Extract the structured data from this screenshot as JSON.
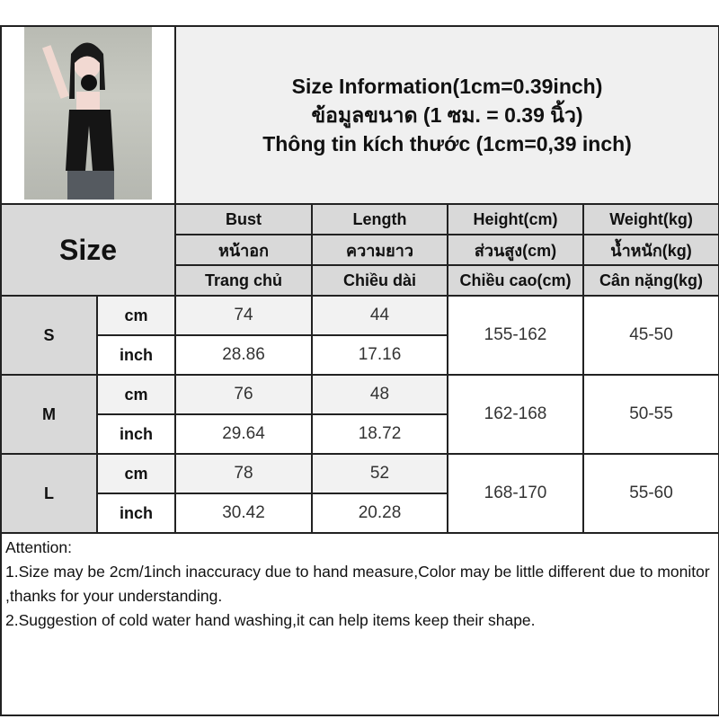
{
  "title": {
    "line_en": "Size Information(1cm=0.39inch)",
    "line_th": "ข้อมูลขนาด (1 ซม. = 0.39 นิ้ว)",
    "line_vi": "Thông tin kích thước (1cm=0,39 inch)"
  },
  "table": {
    "size_label": "Size",
    "columns": [
      {
        "en": "Bust",
        "th": "หน้าอก",
        "vi": "Trang chủ"
      },
      {
        "en": "Length",
        "th": "ความยาว",
        "vi": "Chiều dài"
      },
      {
        "en": "Height(cm)",
        "th": "ส่วนสูง(cm)",
        "vi": "Chiều cao(cm)"
      },
      {
        "en": "Weight(kg)",
        "th": "น้ำหนัก(kg)",
        "vi": "Cân nặng(kg)"
      }
    ],
    "unit_cm": "cm",
    "unit_inch": "inch",
    "rows": [
      {
        "size": "S",
        "bust_cm": "74",
        "length_cm": "44",
        "bust_inch": "28.86",
        "length_inch": "17.16",
        "height": "155-162",
        "weight": "45-50"
      },
      {
        "size": "M",
        "bust_cm": "76",
        "length_cm": "48",
        "bust_inch": "29.64",
        "length_inch": "18.72",
        "height": "162-168",
        "weight": "50-55"
      },
      {
        "size": "L",
        "bust_cm": "78",
        "length_cm": "52",
        "bust_inch": "30.42",
        "length_inch": "20.28",
        "height": "168-170",
        "weight": "55-60"
      }
    ]
  },
  "attention": {
    "heading": "Attention:",
    "note1": "1.Size may be 2cm/1inch inaccuracy due to hand measure,Color may be little different due to monitor ,thanks for your understanding.",
    "note2": "2.Suggestion of cold water hand washing,it can help items keep their shape."
  }
}
